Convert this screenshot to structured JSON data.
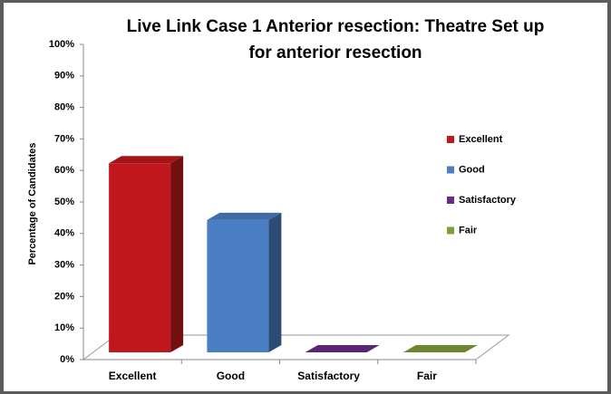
{
  "chart_data": {
    "type": "bar3d",
    "title": [
      "Live Link Case 1 Anterior resection: Theatre Set up",
      "for anterior resection"
    ],
    "ylabel": "Percentage of Candidates",
    "categories": [
      "Excellent",
      "Good",
      "Satisfactory",
      "Fair"
    ],
    "values": [
      60,
      42,
      0,
      0
    ],
    "colors": [
      "#c0171d",
      "#4a7fc4",
      "#6a2a8c",
      "#7ea03a"
    ],
    "ylim": [
      0,
      100
    ],
    "yticks": [
      {
        "value": 0,
        "label": "0%"
      },
      {
        "value": 10,
        "label": "10%"
      },
      {
        "value": 20,
        "label": "20%"
      },
      {
        "value": 30,
        "label": "30%"
      },
      {
        "value": 40,
        "label": "40%"
      },
      {
        "value": 50,
        "label": "50%"
      },
      {
        "value": 60,
        "label": "60%"
      },
      {
        "value": 70,
        "label": "70%"
      },
      {
        "value": 80,
        "label": "80%"
      },
      {
        "value": 90,
        "label": "90%"
      },
      {
        "value": 100,
        "label": "100%"
      }
    ],
    "legend": "right"
  }
}
